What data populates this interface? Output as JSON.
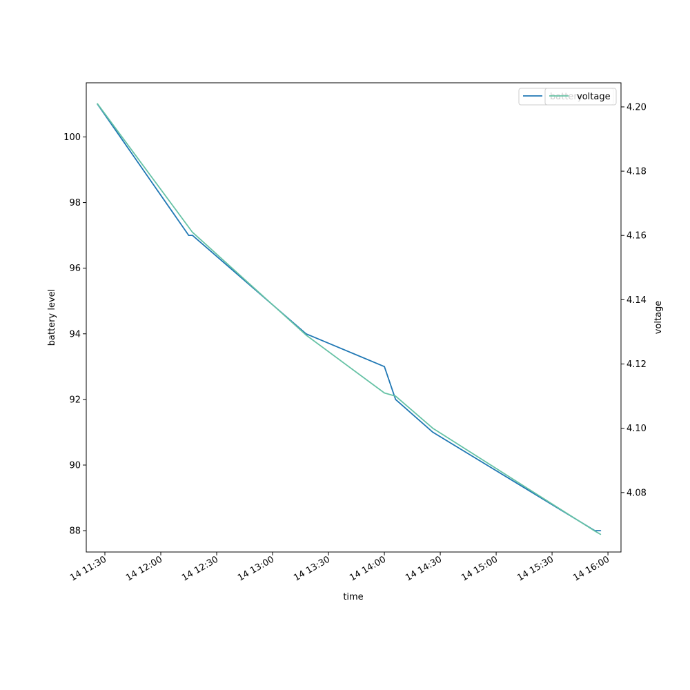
{
  "chart_data": {
    "type": "line",
    "title": "",
    "xlabel": "time",
    "ylabel_left": "battery level",
    "ylabel_right": "voltage",
    "x_range": [
      "2024-01-14T11:20",
      "2024-01-14T16:07"
    ],
    "y_left_range": [
      87.35,
      101.65
    ],
    "y_right_range": [
      4.0615,
      4.2075
    ],
    "x_ticks": [
      {
        "t": "2024-01-14T11:30",
        "label": "14 11:30"
      },
      {
        "t": "2024-01-14T12:00",
        "label": "14 12:00"
      },
      {
        "t": "2024-01-14T12:30",
        "label": "14 12:30"
      },
      {
        "t": "2024-01-14T13:00",
        "label": "14 13:00"
      },
      {
        "t": "2024-01-14T13:30",
        "label": "14 13:30"
      },
      {
        "t": "2024-01-14T14:00",
        "label": "14 14:00"
      },
      {
        "t": "2024-01-14T14:30",
        "label": "14 14:30"
      },
      {
        "t": "2024-01-14T15:00",
        "label": "14 15:00"
      },
      {
        "t": "2024-01-14T15:30",
        "label": "14 15:30"
      },
      {
        "t": "2024-01-14T16:00",
        "label": "14 16:00"
      }
    ],
    "y_left_ticks": [
      {
        "v": 88,
        "label": "88"
      },
      {
        "v": 90,
        "label": "90"
      },
      {
        "v": 92,
        "label": "92"
      },
      {
        "v": 94,
        "label": "94"
      },
      {
        "v": 96,
        "label": "96"
      },
      {
        "v": 98,
        "label": "98"
      },
      {
        "v": 100,
        "label": "100"
      }
    ],
    "y_right_ticks": [
      {
        "v": 4.08,
        "label": "4.08"
      },
      {
        "v": 4.1,
        "label": "4.10"
      },
      {
        "v": 4.12,
        "label": "4.12"
      },
      {
        "v": 4.14,
        "label": "4.14"
      },
      {
        "v": 4.16,
        "label": "4.16"
      },
      {
        "v": 4.18,
        "label": "4.18"
      },
      {
        "v": 4.2,
        "label": "4.20"
      }
    ],
    "series": [
      {
        "name": "battery",
        "axis": "left",
        "color": "#1f77b4",
        "points": [
          [
            "2024-01-14T11:26",
            101
          ],
          [
            "2024-01-14T12:15",
            97
          ],
          [
            "2024-01-14T12:17",
            97
          ],
          [
            "2024-01-14T13:18",
            94
          ],
          [
            "2024-01-14T14:00",
            93
          ],
          [
            "2024-01-14T14:06",
            92
          ],
          [
            "2024-01-14T14:26",
            91
          ],
          [
            "2024-01-14T15:53",
            88
          ],
          [
            "2024-01-14T15:56",
            88
          ]
        ]
      },
      {
        "name": "voltage",
        "axis": "right",
        "color": "#66c2a5",
        "points": [
          [
            "2024-01-14T11:26",
            4.201
          ],
          [
            "2024-01-14T12:17",
            4.161
          ],
          [
            "2024-01-14T13:18",
            4.129
          ],
          [
            "2024-01-14T14:00",
            4.111
          ],
          [
            "2024-01-14T14:06",
            4.11
          ],
          [
            "2024-01-14T14:26",
            4.1
          ],
          [
            "2024-01-14T15:53",
            4.068
          ],
          [
            "2024-01-14T15:56",
            4.067
          ]
        ]
      }
    ],
    "legends": [
      {
        "placement": "upper-right",
        "entries": [
          "battery"
        ]
      },
      {
        "placement": "upper-right",
        "entries": [
          "voltage"
        ]
      }
    ]
  }
}
